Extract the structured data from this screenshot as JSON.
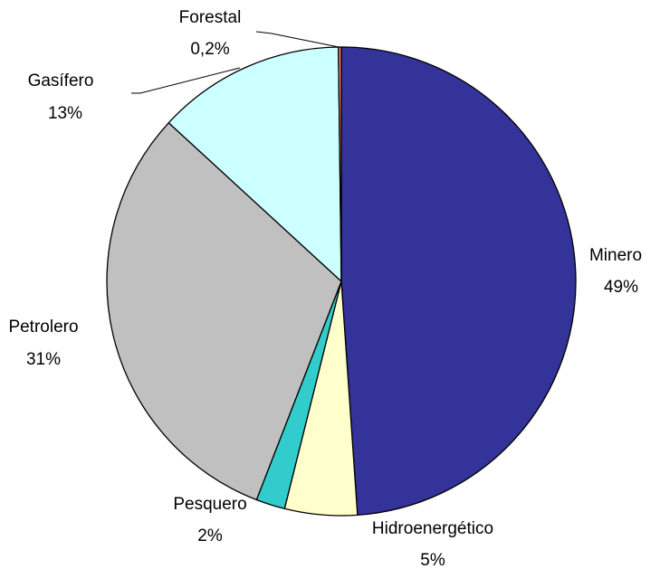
{
  "chart_data": {
    "type": "pie",
    "categories": [
      "Minero",
      "Hidroenergético",
      "Pesquero",
      "Petrolero",
      "Gasífero",
      "Forestal"
    ],
    "values": [
      49,
      5,
      2,
      31,
      13,
      0.2
    ],
    "value_labels": [
      "49%",
      "5%",
      "2%",
      "31%",
      "13%",
      "0,2%"
    ],
    "colors": [
      "#333399",
      "#ffffcc",
      "#33cccc",
      "#c0c0c0",
      "#ccffff",
      "#ff8080"
    ]
  }
}
